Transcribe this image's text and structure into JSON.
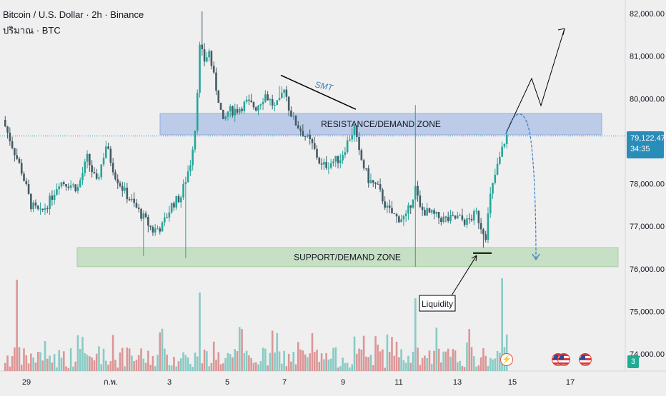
{
  "header": {
    "title": "Bitcoin / U.S. Dollar · 2h · Binance",
    "volume_label": "ปริมาณ · BTC"
  },
  "colors": {
    "up": "#26a69a",
    "down": "#455a64",
    "vol_up": "#7cc7c0",
    "vol_down": "#d98c8c",
    "accent": "#2a8cb8"
  },
  "last_price": {
    "value": "79,122.47",
    "countdown": "34:35"
  },
  "volume_badge": "3",
  "events": {
    "flash_icon": "lightning-icon",
    "flag_icon": "us-flag-icon"
  },
  "chart_data": {
    "type": "candlestick",
    "symbol": "BTCUSD",
    "interval": "2h",
    "exchange": "Binance",
    "y_axis": {
      "range": [
        73700,
        82300
      ],
      "ticks": [
        "82,000.00",
        "81,000.00",
        "80,000.00",
        "78,000.00",
        "77,000.00",
        "76,000.00",
        "75,000.00",
        "74,000.00"
      ]
    },
    "x_axis": {
      "ticks": [
        "29",
        "ก.พ.",
        "3",
        "5",
        "7",
        "9",
        "11",
        "13",
        "15",
        "17"
      ]
    },
    "zones": [
      {
        "name": "resistance",
        "label": "RESISTANCE/DEMAND ZONE",
        "from": 79150,
        "to": 79650
      },
      {
        "name": "support",
        "label": "SUPPORT/DEMAND ZONE",
        "from": 76050,
        "to": 76500
      }
    ],
    "annotations": {
      "smt": "SMT",
      "liquidity": "Liquidity"
    },
    "price_path": [
      [
        0,
        79500
      ],
      [
        4,
        78900
      ],
      [
        8,
        78300
      ],
      [
        12,
        77500
      ],
      [
        16,
        77300
      ],
      [
        20,
        77600
      ],
      [
        24,
        78050
      ],
      [
        28,
        78000
      ],
      [
        32,
        77900
      ],
      [
        36,
        78600
      ],
      [
        40,
        78000
      ],
      [
        44,
        78900
      ],
      [
        48,
        78200
      ],
      [
        52,
        77800
      ],
      [
        56,
        77500
      ],
      [
        60,
        77200
      ],
      [
        64,
        76900
      ],
      [
        68,
        77000
      ],
      [
        72,
        77500
      ],
      [
        76,
        77700
      ],
      [
        80,
        78500
      ],
      [
        82,
        79300
      ],
      [
        84,
        81200
      ],
      [
        86,
        80900
      ],
      [
        88,
        81100
      ],
      [
        90,
        80500
      ],
      [
        92,
        80000
      ],
      [
        94,
        79400
      ],
      [
        96,
        79700
      ],
      [
        100,
        79750
      ],
      [
        104,
        79900
      ],
      [
        108,
        79800
      ],
      [
        112,
        80100
      ],
      [
        116,
        79800
      ],
      [
        118,
        79900
      ],
      [
        120,
        80300
      ],
      [
        122,
        79800
      ],
      [
        124,
        79500
      ],
      [
        128,
        79200
      ],
      [
        132,
        78900
      ],
      [
        136,
        78400
      ],
      [
        140,
        78500
      ],
      [
        144,
        78600
      ],
      [
        148,
        79100
      ],
      [
        150,
        79300
      ],
      [
        152,
        78700
      ],
      [
        156,
        78100
      ],
      [
        160,
        77900
      ],
      [
        164,
        77400
      ],
      [
        168,
        77200
      ],
      [
        172,
        77200
      ],
      [
        176,
        77900
      ],
      [
        178,
        77400
      ],
      [
        182,
        77300
      ],
      [
        186,
        77200
      ],
      [
        190,
        77150
      ],
      [
        194,
        77200
      ],
      [
        198,
        77100
      ],
      [
        202,
        77300
      ],
      [
        204,
        77000
      ],
      [
        206,
        76800
      ],
      [
        208,
        77700
      ],
      [
        210,
        78200
      ],
      [
        212,
        78600
      ],
      [
        214,
        79000
      ],
      [
        215,
        79122
      ]
    ],
    "projection": {
      "up_path": [
        79122,
        79800,
        80400,
        79900,
        81700
      ],
      "down_curve": [
        79122,
        79500,
        78500,
        76800,
        76200
      ]
    }
  }
}
